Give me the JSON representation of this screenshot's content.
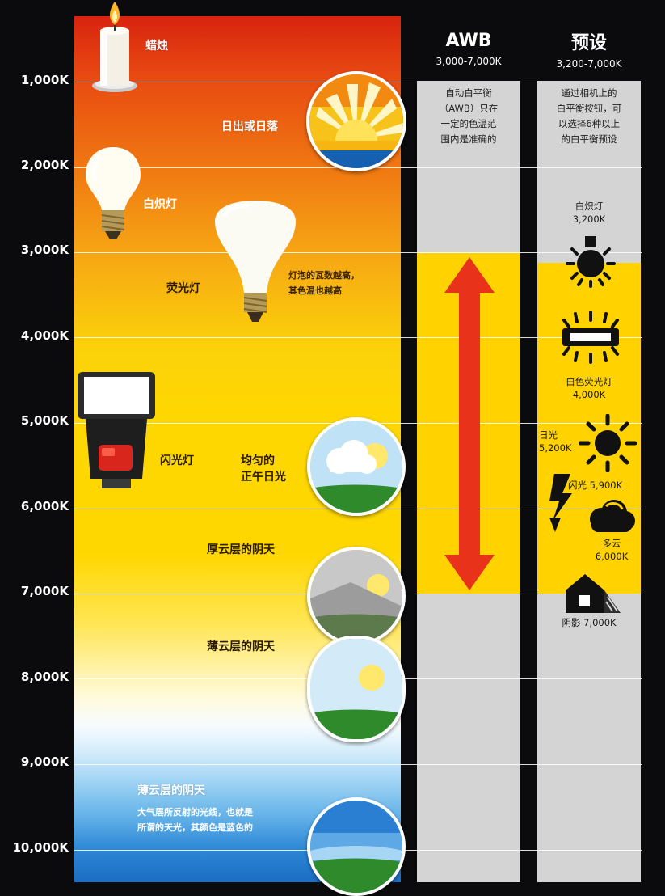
{
  "scale": {
    "ticks": [
      "1,000K",
      "2,000K",
      "3,000K",
      "4,000K",
      "5,000K",
      "6,000K",
      "7,000K",
      "8,000K",
      "9,000K",
      "10,000K"
    ]
  },
  "sources": {
    "candle": "蜡烛",
    "sunrise_sunset": "日出或日落",
    "incandescent": "白炽灯",
    "fluorescent": "荧光灯",
    "bulb_note_line1": "灯泡的瓦数越高，",
    "bulb_note_line2": "其色温也越高",
    "flash": "闪光灯",
    "noon_line1": "均匀的",
    "noon_line2": "正午日光",
    "heavy_overcast": "厚云层的阴天",
    "light_overcast": "薄云层的阴天",
    "skylight_title": "薄云层的阴天",
    "skylight_line1": "大气层所反射的光线，也就是",
    "skylight_line2": "所谓的天光，其颜色是蓝色的"
  },
  "awb": {
    "title": "AWB",
    "range": "3,000-7,000K",
    "desc_lines": [
      "自动白平衡",
      "（AWB）只在",
      "一定的色温范",
      "围内是准确的"
    ]
  },
  "presets": {
    "title": "预设",
    "range": "3,200-7,000K",
    "desc_lines": [
      "通过相机上的",
      "白平衡按钮，可",
      "以选择6种以上",
      "的白平衡预设"
    ],
    "tungsten_name": "白炽灯",
    "tungsten_value": "3,200K",
    "fluorescent_name": "白色荧光灯",
    "fluorescent_value": "4,000K",
    "daylight_name": "日光",
    "daylight_value": "5,200K",
    "flash_label": "闪光 5,900K",
    "cloudy_name": "多云",
    "cloudy_value": "6,000K",
    "shade_label": "阴影 7,000K"
  },
  "colors": {
    "awb_arrow": "#e8321a",
    "band_yellow": "#ffd200",
    "column_grey": "#d4d4d4"
  },
  "icons": {
    "tungsten": "lightbulb-sun-icon",
    "fluorescent": "fluorescent-tube-icon",
    "daylight": "sun-icon",
    "flash": "lightning-bolt-icon",
    "cloudy": "cloud-icon",
    "shade": "house-shade-icon"
  }
}
